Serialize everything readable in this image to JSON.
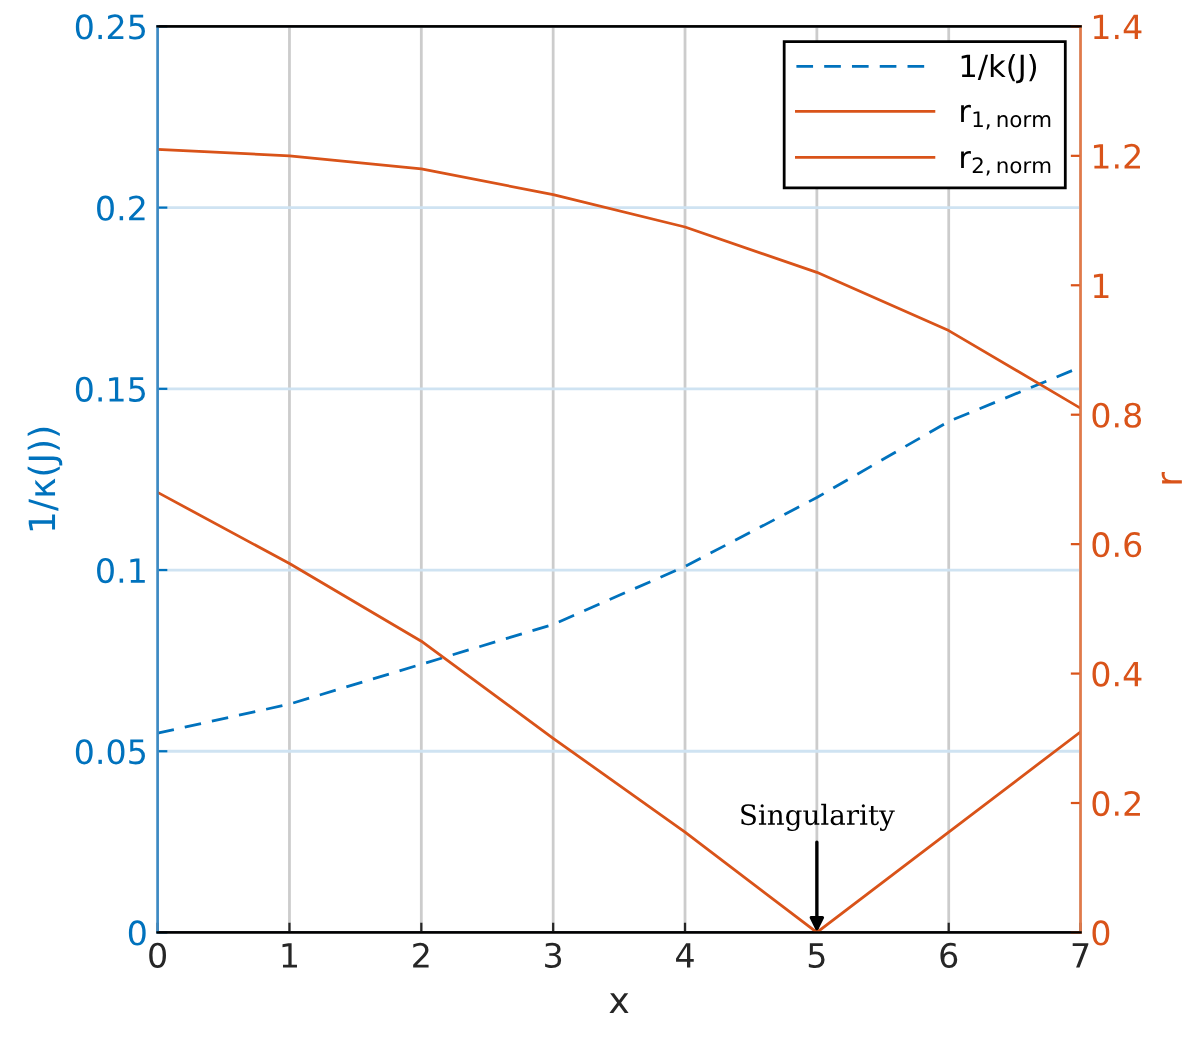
{
  "chart_data": {
    "type": "line",
    "xlabel": "x",
    "ylabel": "1/κ(J))",
    "y2label": "r",
    "x": [
      0,
      1,
      2,
      3,
      4,
      5,
      6,
      7
    ],
    "series": [
      {
        "name": "1/k(J)",
        "color": "#0072bd",
        "line_style": "dashed",
        "axis": "y",
        "values": [
          0.055,
          0.063,
          0.074,
          0.085,
          0.101,
          0.12,
          0.141,
          0.156
        ]
      },
      {
        "name": "r$_{1,norm}$",
        "color": "#d95319",
        "line_style": "solid",
        "axis": "y2",
        "values": [
          1.21,
          1.2,
          1.18,
          1.14,
          1.09,
          1.02,
          0.93,
          0.81
        ]
      },
      {
        "name": "r$_{2,norm}$",
        "color": "#d95319",
        "line_style": "solid",
        "axis": "y2",
        "values": [
          0.68,
          0.57,
          0.45,
          0.3,
          0.155,
          0,
          0.155,
          0.31
        ]
      }
    ],
    "xlim": [
      0,
      7
    ],
    "xticks": [
      0,
      1,
      2,
      3,
      4,
      5,
      6,
      7
    ],
    "ylim": [
      0,
      0.25
    ],
    "yticks": [
      0,
      0.05,
      0.1,
      0.15,
      0.2,
      0.25
    ],
    "y2lim": [
      0,
      1.4
    ],
    "y2ticks": [
      0,
      0.2,
      0.4,
      0.6,
      0.8,
      1,
      1.2,
      1.4
    ],
    "grid": true,
    "legend": "top right",
    "marker": "none",
    "annotations": [
      {
        "text": "Singularity",
        "x": 5,
        "y": 0
      }
    ]
  }
}
